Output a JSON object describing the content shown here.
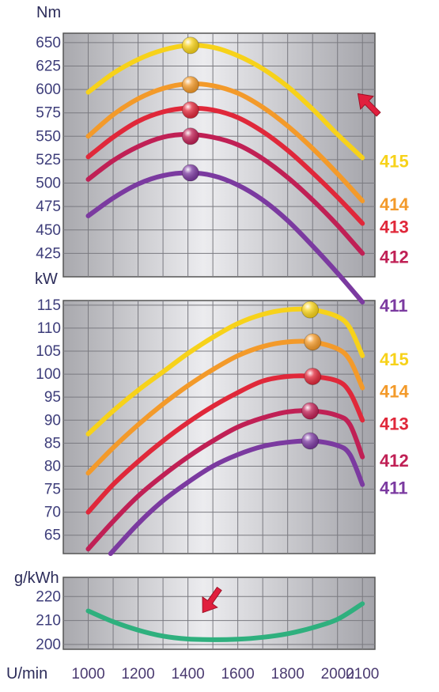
{
  "chart_data": [
    {
      "type": "line",
      "ylabel": "Nm",
      "ylim": [
        400,
        660
      ],
      "yticks": [
        425,
        450,
        475,
        500,
        525,
        550,
        575,
        600,
        625,
        650
      ],
      "xlim": [
        900,
        2150
      ],
      "xticks": [
        1000,
        1200,
        1400,
        1600,
        1800,
        2000,
        2100
      ],
      "grid": true,
      "series": [
        {
          "name": "415",
          "color": "#f7d21a",
          "x": [
            1000,
            1100,
            1200,
            1300,
            1400,
            1500,
            1600,
            1700,
            1800,
            1900,
            2000,
            2100
          ],
          "values": [
            597,
            617,
            632,
            642,
            647,
            645,
            636,
            622,
            603,
            579,
            552,
            527
          ],
          "peak": {
            "x": 1410,
            "value": 647
          }
        },
        {
          "name": "414",
          "color": "#f39a2a",
          "x": [
            1000,
            1100,
            1200,
            1300,
            1400,
            1500,
            1600,
            1700,
            1800,
            1900,
            2000,
            2100
          ],
          "values": [
            550,
            573,
            590,
            601,
            606,
            604,
            596,
            581,
            561,
            537,
            510,
            481
          ],
          "peak": {
            "x": 1410,
            "value": 605
          }
        },
        {
          "name": "413",
          "color": "#e0283a",
          "x": [
            1000,
            1100,
            1200,
            1300,
            1400,
            1500,
            1600,
            1700,
            1800,
            1900,
            2000,
            2100
          ],
          "values": [
            528,
            549,
            566,
            576,
            580,
            578,
            570,
            555,
            535,
            511,
            485,
            457
          ],
          "peak": {
            "x": 1410,
            "value": 578
          }
        },
        {
          "name": "412",
          "color": "#c02055",
          "x": [
            1000,
            1100,
            1200,
            1300,
            1400,
            1500,
            1600,
            1700,
            1800,
            1900,
            2000,
            2100
          ],
          "values": [
            504,
            524,
            539,
            549,
            552,
            549,
            541,
            526,
            506,
            482,
            455,
            425
          ],
          "peak": {
            "x": 1410,
            "value": 550
          }
        },
        {
          "name": "411",
          "color": "#7b3aa0",
          "x": [
            1000,
            1100,
            1200,
            1300,
            1400,
            1500,
            1600,
            1700,
            1800,
            1900,
            2000,
            2100
          ],
          "values": [
            465,
            484,
            499,
            508,
            511,
            508,
            498,
            482,
            460,
            433,
            404,
            373
          ],
          "peak": {
            "x": 1410,
            "value": 511
          }
        }
      ]
    },
    {
      "type": "line",
      "ylabel": "kW",
      "ylim": [
        61,
        116
      ],
      "yticks": [
        65,
        70,
        75,
        80,
        85,
        90,
        95,
        100,
        105,
        110,
        115
      ],
      "xlim": [
        900,
        2150
      ],
      "xticks": [
        1000,
        1200,
        1400,
        1600,
        1800,
        2000,
        2100
      ],
      "grid": true,
      "series": [
        {
          "name": "415",
          "color": "#f7d21a",
          "x": [
            1000,
            1100,
            1200,
            1300,
            1400,
            1500,
            1600,
            1700,
            1800,
            1900,
            2000,
            2050,
            2100
          ],
          "values": [
            87,
            92,
            96.5,
            100.5,
            104.5,
            108,
            111,
            113,
            114,
            114,
            112.5,
            110,
            104
          ],
          "peak": {
            "x": 1890,
            "value": 114
          }
        },
        {
          "name": "414",
          "color": "#f39a2a",
          "x": [
            1000,
            1100,
            1200,
            1300,
            1400,
            1500,
            1600,
            1700,
            1800,
            1900,
            2000,
            2050,
            2100
          ],
          "values": [
            78.5,
            84,
            89,
            93.5,
            97.5,
            101,
            104,
            106,
            107,
            107,
            105.5,
            103,
            97
          ],
          "peak": {
            "x": 1900,
            "value": 107
          }
        },
        {
          "name": "413",
          "color": "#e0283a",
          "x": [
            1000,
            1100,
            1200,
            1300,
            1400,
            1500,
            1600,
            1700,
            1800,
            1900,
            2000,
            2050,
            2100
          ],
          "values": [
            70,
            76,
            81,
            85.5,
            89.5,
            93,
            96,
            98.5,
            99.5,
            99.5,
            98.5,
            96,
            90
          ],
          "peak": {
            "x": 1900,
            "value": 99.5
          }
        },
        {
          "name": "412",
          "color": "#c02055",
          "x": [
            1000,
            1100,
            1200,
            1300,
            1400,
            1500,
            1600,
            1700,
            1800,
            1900,
            2000,
            2050,
            2100
          ],
          "values": [
            62,
            68,
            73.5,
            78,
            82,
            85.5,
            88.5,
            90.5,
            91.8,
            92,
            91,
            89,
            82
          ],
          "peak": {
            "x": 1890,
            "value": 92
          }
        },
        {
          "name": "411",
          "color": "#7b3aa0",
          "x": [
            1090,
            1200,
            1300,
            1400,
            1500,
            1600,
            1700,
            1800,
            1900,
            2000,
            2050,
            2100
          ],
          "values": [
            61,
            67.5,
            72.5,
            76.5,
            80,
            82.5,
            84.3,
            85.2,
            85.5,
            84.5,
            82.5,
            76
          ],
          "peak": {
            "x": 1890,
            "value": 85.5
          }
        }
      ]
    },
    {
      "type": "line",
      "ylabel": "g/kWh",
      "xlabel": "U/min",
      "ylim": [
        198,
        228
      ],
      "yticks": [
        200,
        210,
        220
      ],
      "xlim": [
        900,
        2150
      ],
      "xticks": [
        1000,
        1200,
        1400,
        1600,
        1800,
        2000,
        2100
      ],
      "grid": true,
      "series": [
        {
          "name": "",
          "color": "#2fb07e",
          "x": [
            1000,
            1100,
            1200,
            1300,
            1400,
            1500,
            1600,
            1700,
            1800,
            1900,
            2000,
            2100
          ],
          "values": [
            214,
            209.5,
            206,
            203.5,
            202.3,
            202,
            202.2,
            203,
            204.5,
            207,
            210.5,
            217
          ]
        }
      ]
    }
  ],
  "colors": {
    "panel_bg": "#cfcfd3",
    "grid": "#7a7a80",
    "arrow": "#e01f3d"
  }
}
